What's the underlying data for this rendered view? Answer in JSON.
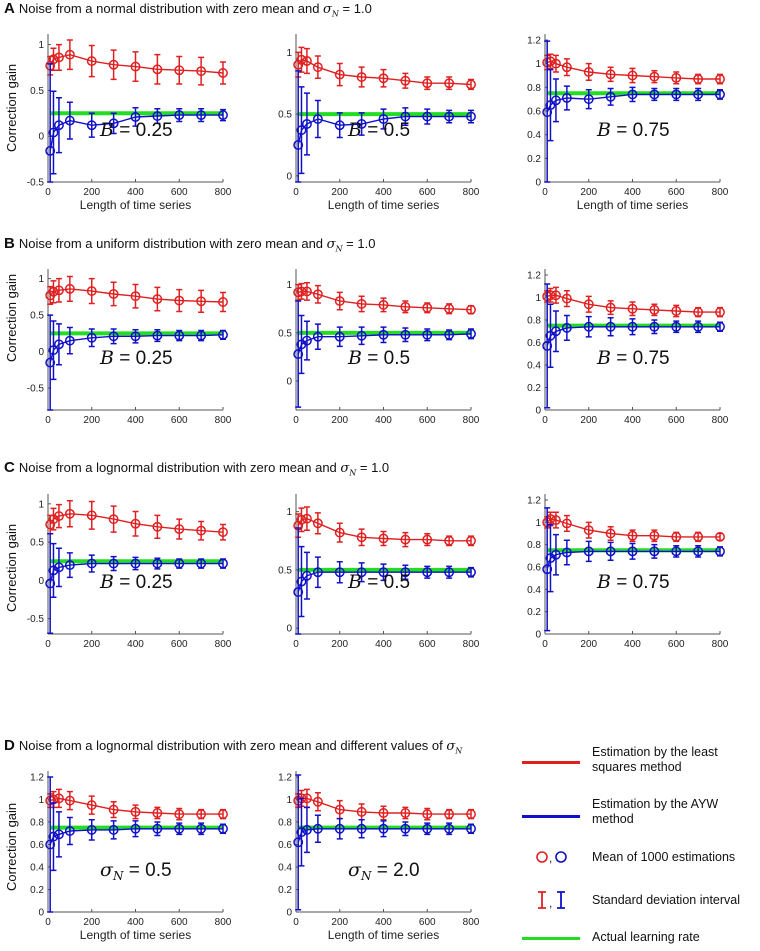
{
  "panel_titles": {
    "A": {
      "letter": "A",
      "text": "Noise from a normal distribution with zero mean and ",
      "sigma": "σ",
      "sub": "N",
      "suffix": " = 1.0"
    },
    "B": {
      "letter": "B",
      "text": "Noise from a uniform distribution with zero mean and ",
      "sigma": "σ",
      "sub": "N",
      "suffix": " = 1.0"
    },
    "C": {
      "letter": "C",
      "text": "Noise from a lognormal distribution with zero mean and ",
      "sigma": "σ",
      "sub": "N",
      "suffix": " = 1.0"
    },
    "D": {
      "letter": "D",
      "text": "Noise from a lognormal distribution with zero mean and different values of ",
      "sigma": "σ",
      "sub": "N",
      "suffix": ""
    }
  },
  "ylabel": "Correction gain",
  "xlabel": "Length of time series",
  "colors": {
    "ls": "#e02020",
    "ayw": "#1010c8",
    "actual": "#22dd22"
  },
  "legend": {
    "ls": "Estimation by the least squares method",
    "ayw": "Estimation by the AYW method",
    "mean": "Mean of 1000 estimations",
    "std": "Standard deviation interval",
    "actual": "Actual learning rate",
    "mean_symbol": ",",
    "std_symbol": ","
  },
  "chart_data": [
    {
      "id": "A1",
      "type": "line",
      "row": "A",
      "col": 0,
      "annotation": "B = 0.25",
      "annotation_var": "B",
      "annotation_val": "= 0.25",
      "ylim": [
        -0.5,
        1.05
      ],
      "yticks": [
        -0.5,
        0,
        0.5,
        1
      ],
      "ytick_labels": [
        "-0.5",
        "0",
        "0.5",
        "1"
      ],
      "xlim": [
        0,
        800
      ],
      "xticks": [
        0,
        200,
        400,
        600,
        800
      ],
      "show_xlabel": true,
      "show_ylabel": true,
      "actual": 0.25,
      "x": [
        10,
        25,
        50,
        100,
        200,
        300,
        400,
        500,
        600,
        700,
        800
      ],
      "ls_mean": [
        0.77,
        0.84,
        0.86,
        0.89,
        0.82,
        0.78,
        0.76,
        0.73,
        0.72,
        0.71,
        0.69
      ],
      "ls_sd": [
        0.1,
        0.12,
        0.14,
        0.16,
        0.17,
        0.16,
        0.16,
        0.16,
        0.15,
        0.15,
        0.12
      ],
      "ayw_mean": [
        -0.16,
        0.04,
        0.12,
        0.17,
        0.12,
        0.14,
        0.21,
        0.22,
        0.23,
        0.23,
        0.23
      ],
      "ayw_sd": [
        0.95,
        0.45,
        0.3,
        0.2,
        0.13,
        0.11,
        0.1,
        0.08,
        0.07,
        0.07,
        0.06
      ]
    },
    {
      "id": "A2",
      "type": "line",
      "row": "A",
      "col": 1,
      "annotation": "B = 0.5",
      "annotation_var": "B",
      "annotation_val": "= 0.5",
      "ylim": [
        -0.05,
        1.1
      ],
      "yticks": [
        0,
        0.5,
        1
      ],
      "ytick_labels": [
        "0",
        "0.5",
        "1"
      ],
      "xlim": [
        0,
        800
      ],
      "xticks": [
        0,
        200,
        400,
        600,
        800
      ],
      "show_xlabel": true,
      "show_ylabel": false,
      "actual": 0.5,
      "x": [
        10,
        25,
        50,
        100,
        200,
        300,
        400,
        500,
        600,
        700,
        800
      ],
      "ls_mean": [
        0.9,
        0.94,
        0.93,
        0.88,
        0.82,
        0.8,
        0.79,
        0.77,
        0.75,
        0.75,
        0.74
      ],
      "ls_sd": [
        0.1,
        0.1,
        0.1,
        0.09,
        0.09,
        0.08,
        0.07,
        0.06,
        0.05,
        0.05,
        0.04
      ],
      "ayw_mean": [
        0.25,
        0.37,
        0.42,
        0.46,
        0.41,
        0.42,
        0.46,
        0.48,
        0.48,
        0.48,
        0.48
      ],
      "ayw_sd": [
        0.6,
        0.35,
        0.25,
        0.15,
        0.1,
        0.09,
        0.08,
        0.07,
        0.06,
        0.05,
        0.05
      ]
    },
    {
      "id": "A3",
      "type": "line",
      "row": "A",
      "col": 2,
      "annotation": "B = 0.75",
      "annotation_var": "B",
      "annotation_val": "= 0.75",
      "ylim": [
        0,
        1.2
      ],
      "yticks": [
        0,
        0.2,
        0.4,
        0.6,
        0.8,
        1,
        1.2
      ],
      "ytick_labels": [
        "0",
        "0.2",
        "0.4",
        "0.6",
        "0.8",
        "1",
        "1.2"
      ],
      "xlim": [
        0,
        800
      ],
      "xticks": [
        0,
        200,
        400,
        600,
        800
      ],
      "show_xlabel": true,
      "show_ylabel": false,
      "actual": 0.75,
      "x": [
        10,
        25,
        50,
        100,
        200,
        300,
        400,
        500,
        600,
        700,
        800
      ],
      "ls_mean": [
        1.01,
        1.02,
        1.0,
        0.97,
        0.93,
        0.91,
        0.9,
        0.89,
        0.88,
        0.87,
        0.87
      ],
      "ls_sd": [
        0.06,
        0.06,
        0.07,
        0.07,
        0.07,
        0.06,
        0.06,
        0.05,
        0.05,
        0.04,
        0.04
      ],
      "ayw_mean": [
        0.59,
        0.65,
        0.69,
        0.71,
        0.7,
        0.72,
        0.74,
        0.74,
        0.74,
        0.74,
        0.74
      ],
      "ayw_sd": [
        0.6,
        0.3,
        0.18,
        0.1,
        0.08,
        0.07,
        0.06,
        0.05,
        0.05,
        0.05,
        0.04
      ]
    },
    {
      "id": "B1",
      "type": "line",
      "row": "B",
      "col": 0,
      "annotation": "B = 0.25",
      "annotation_var": "B",
      "annotation_val": "= 0.25",
      "ylim": [
        -0.8,
        1.05
      ],
      "yticks": [
        -0.5,
        0,
        0.5,
        1
      ],
      "ytick_labels": [
        "-0.5",
        "0",
        "0.5",
        "1"
      ],
      "xlim": [
        0,
        800
      ],
      "xticks": [
        0,
        200,
        400,
        600,
        800
      ],
      "show_xlabel": false,
      "show_ylabel": true,
      "actual": 0.25,
      "x": [
        10,
        25,
        50,
        100,
        200,
        300,
        400,
        500,
        600,
        700,
        800
      ],
      "ls_mean": [
        0.77,
        0.82,
        0.84,
        0.86,
        0.83,
        0.79,
        0.76,
        0.72,
        0.7,
        0.69,
        0.68
      ],
      "ls_sd": [
        0.12,
        0.15,
        0.16,
        0.17,
        0.17,
        0.16,
        0.16,
        0.16,
        0.15,
        0.15,
        0.13
      ],
      "ayw_mean": [
        -0.15,
        0.02,
        0.1,
        0.15,
        0.19,
        0.21,
        0.21,
        0.22,
        0.22,
        0.22,
        0.23
      ],
      "ayw_sd": [
        0.65,
        0.4,
        0.28,
        0.18,
        0.12,
        0.1,
        0.09,
        0.08,
        0.07,
        0.07,
        0.06
      ]
    },
    {
      "id": "B2",
      "type": "line",
      "row": "B",
      "col": 1,
      "annotation": "B = 0.5",
      "annotation_var": "B",
      "annotation_val": "= 0.5",
      "ylim": [
        -0.3,
        1.1
      ],
      "yticks": [
        0,
        0.5,
        1
      ],
      "ytick_labels": [
        "0",
        "0.5",
        "1"
      ],
      "xlim": [
        0,
        800
      ],
      "xticks": [
        0,
        200,
        400,
        600,
        800
      ],
      "show_xlabel": false,
      "show_ylabel": false,
      "actual": 0.5,
      "x": [
        10,
        25,
        50,
        100,
        200,
        300,
        400,
        500,
        600,
        700,
        800
      ],
      "ls_mean": [
        0.92,
        0.93,
        0.93,
        0.9,
        0.83,
        0.8,
        0.79,
        0.77,
        0.76,
        0.75,
        0.74
      ],
      "ls_sd": [
        0.08,
        0.08,
        0.09,
        0.09,
        0.09,
        0.08,
        0.07,
        0.06,
        0.05,
        0.05,
        0.04
      ],
      "ayw_mean": [
        0.28,
        0.38,
        0.42,
        0.46,
        0.46,
        0.47,
        0.48,
        0.48,
        0.48,
        0.48,
        0.49
      ],
      "ayw_sd": [
        0.55,
        0.3,
        0.2,
        0.13,
        0.1,
        0.09,
        0.08,
        0.07,
        0.06,
        0.05,
        0.05
      ]
    },
    {
      "id": "B3",
      "type": "line",
      "row": "B",
      "col": 2,
      "annotation": "B = 0.75",
      "annotation_var": "B",
      "annotation_val": "= 0.75",
      "ylim": [
        0,
        1.2
      ],
      "yticks": [
        0,
        0.2,
        0.4,
        0.6,
        0.8,
        1,
        1.2
      ],
      "ytick_labels": [
        "0",
        "0.2",
        "0.4",
        "0.6",
        "0.8",
        "1",
        "1.2"
      ],
      "xlim": [
        0,
        800
      ],
      "xticks": [
        0,
        200,
        400,
        600,
        800
      ],
      "show_xlabel": false,
      "show_ylabel": false,
      "actual": 0.75,
      "x": [
        10,
        25,
        50,
        100,
        200,
        300,
        400,
        500,
        600,
        700,
        800
      ],
      "ls_mean": [
        1.01,
        1.02,
        1.02,
        0.99,
        0.94,
        0.91,
        0.9,
        0.89,
        0.88,
        0.87,
        0.87
      ],
      "ls_sd": [
        0.05,
        0.06,
        0.07,
        0.07,
        0.07,
        0.06,
        0.06,
        0.05,
        0.05,
        0.04,
        0.04
      ],
      "ayw_mean": [
        0.57,
        0.66,
        0.7,
        0.73,
        0.74,
        0.74,
        0.74,
        0.74,
        0.74,
        0.74,
        0.74
      ],
      "ayw_sd": [
        0.55,
        0.28,
        0.18,
        0.11,
        0.09,
        0.08,
        0.07,
        0.06,
        0.05,
        0.05,
        0.04
      ]
    },
    {
      "id": "C1",
      "type": "line",
      "row": "C",
      "col": 0,
      "annotation": "B = 0.25",
      "annotation_var": "B",
      "annotation_val": "= 0.25",
      "ylim": [
        -0.7,
        1.05
      ],
      "yticks": [
        -0.5,
        0,
        0.5,
        1
      ],
      "ytick_labels": [
        "-0.5",
        "0",
        "0.5",
        "1"
      ],
      "xlim": [
        0,
        800
      ],
      "xticks": [
        0,
        200,
        400,
        600,
        800
      ],
      "show_xlabel": false,
      "show_ylabel": true,
      "actual": 0.25,
      "x": [
        10,
        25,
        50,
        100,
        200,
        300,
        400,
        500,
        600,
        700,
        800
      ],
      "ls_mean": [
        0.73,
        0.8,
        0.84,
        0.87,
        0.85,
        0.8,
        0.74,
        0.7,
        0.67,
        0.65,
        0.63
      ],
      "ls_sd": [
        0.12,
        0.14,
        0.15,
        0.17,
        0.18,
        0.17,
        0.16,
        0.15,
        0.13,
        0.12,
        0.1
      ],
      "ayw_mean": [
        -0.04,
        0.13,
        0.17,
        0.2,
        0.22,
        0.22,
        0.22,
        0.22,
        0.22,
        0.22,
        0.22
      ],
      "ayw_sd": [
        0.65,
        0.35,
        0.25,
        0.16,
        0.11,
        0.09,
        0.08,
        0.07,
        0.06,
        0.06,
        0.06
      ]
    },
    {
      "id": "C2",
      "type": "line",
      "row": "C",
      "col": 1,
      "annotation": "B = 0.5",
      "annotation_var": "B",
      "annotation_val": "= 0.5",
      "ylim": [
        -0.05,
        1.1
      ],
      "yticks": [
        0,
        0.5,
        1
      ],
      "ytick_labels": [
        "0",
        "0.5",
        "1"
      ],
      "xlim": [
        0,
        800
      ],
      "xticks": [
        0,
        200,
        400,
        600,
        800
      ],
      "show_xlabel": false,
      "show_ylabel": false,
      "actual": 0.5,
      "x": [
        10,
        25,
        50,
        100,
        200,
        300,
        400,
        500,
        600,
        700,
        800
      ],
      "ls_mean": [
        0.88,
        0.93,
        0.94,
        0.9,
        0.82,
        0.78,
        0.77,
        0.76,
        0.76,
        0.75,
        0.75
      ],
      "ls_sd": [
        0.1,
        0.1,
        0.1,
        0.09,
        0.08,
        0.07,
        0.06,
        0.06,
        0.05,
        0.04,
        0.04
      ],
      "ayw_mean": [
        0.31,
        0.4,
        0.45,
        0.48,
        0.48,
        0.48,
        0.48,
        0.48,
        0.48,
        0.48,
        0.48
      ],
      "ayw_sd": [
        0.55,
        0.3,
        0.2,
        0.13,
        0.09,
        0.08,
        0.07,
        0.06,
        0.05,
        0.05,
        0.04
      ]
    },
    {
      "id": "C3",
      "type": "line",
      "row": "C",
      "col": 2,
      "annotation": "B = 0.75",
      "annotation_var": "B",
      "annotation_val": "= 0.75",
      "ylim": [
        0,
        1.2
      ],
      "yticks": [
        0,
        0.2,
        0.4,
        0.6,
        0.8,
        1,
        1.2
      ],
      "ytick_labels": [
        "0",
        "0.2",
        "0.4",
        "0.6",
        "0.8",
        "1",
        "1.2"
      ],
      "xlim": [
        0,
        800
      ],
      "xticks": [
        0,
        200,
        400,
        600,
        800
      ],
      "show_xlabel": false,
      "show_ylabel": false,
      "actual": 0.75,
      "x": [
        10,
        25,
        50,
        100,
        200,
        300,
        400,
        500,
        600,
        700,
        800
      ],
      "ls_mean": [
        1.0,
        1.03,
        1.02,
        0.99,
        0.93,
        0.9,
        0.88,
        0.88,
        0.87,
        0.87,
        0.87
      ],
      "ls_sd": [
        0.05,
        0.06,
        0.07,
        0.07,
        0.07,
        0.06,
        0.05,
        0.05,
        0.04,
        0.04,
        0.03
      ],
      "ayw_mean": [
        0.58,
        0.68,
        0.71,
        0.73,
        0.74,
        0.74,
        0.74,
        0.74,
        0.74,
        0.74,
        0.74
      ],
      "ayw_sd": [
        0.55,
        0.3,
        0.18,
        0.11,
        0.09,
        0.08,
        0.07,
        0.06,
        0.05,
        0.05,
        0.04
      ]
    },
    {
      "id": "D1",
      "type": "line",
      "row": "D",
      "col": 0,
      "annotation": "σN = 0.5",
      "annotation_var": "σ",
      "annotation_sub": "N",
      "annotation_val": "= 0.5",
      "ylim": [
        0,
        1.2
      ],
      "yticks": [
        0,
        0.2,
        0.4,
        0.6,
        0.8,
        1,
        1.2
      ],
      "ytick_labels": [
        "0",
        "0.2",
        "0.4",
        "0.6",
        "0.8",
        "1",
        "1.2"
      ],
      "xlim": [
        0,
        800
      ],
      "xticks": [
        0,
        200,
        400,
        600,
        800
      ],
      "show_xlabel": true,
      "show_ylabel": true,
      "actual": 0.75,
      "x": [
        10,
        25,
        50,
        100,
        200,
        300,
        400,
        500,
        600,
        700,
        800
      ],
      "ls_mean": [
        0.99,
        1.0,
        1.01,
        0.99,
        0.95,
        0.91,
        0.89,
        0.88,
        0.87,
        0.87,
        0.87
      ],
      "ls_sd": [
        0.06,
        0.07,
        0.08,
        0.08,
        0.08,
        0.07,
        0.06,
        0.05,
        0.05,
        0.04,
        0.04
      ],
      "ayw_mean": [
        0.6,
        0.67,
        0.69,
        0.72,
        0.73,
        0.73,
        0.74,
        0.74,
        0.74,
        0.74,
        0.74
      ],
      "ayw_sd": [
        0.6,
        0.3,
        0.2,
        0.12,
        0.09,
        0.08,
        0.07,
        0.06,
        0.05,
        0.05,
        0.04
      ]
    },
    {
      "id": "D2",
      "type": "line",
      "row": "D",
      "col": 1,
      "annotation": "σN = 2.0",
      "annotation_var": "σ",
      "annotation_sub": "N",
      "annotation_val": "= 2.0",
      "ylim": [
        0,
        1.2
      ],
      "yticks": [
        0,
        0.2,
        0.4,
        0.6,
        0.8,
        1,
        1.2
      ],
      "ytick_labels": [
        "0",
        "0.2",
        "0.4",
        "0.6",
        "0.8",
        "1",
        "1.2"
      ],
      "xlim": [
        0,
        800
      ],
      "xticks": [
        0,
        200,
        400,
        600,
        800
      ],
      "show_xlabel": true,
      "show_ylabel": false,
      "actual": 0.75,
      "x": [
        10,
        25,
        50,
        100,
        200,
        300,
        400,
        500,
        600,
        700,
        800
      ],
      "ls_mean": [
        0.99,
        1.01,
        1.01,
        0.98,
        0.91,
        0.89,
        0.88,
        0.88,
        0.87,
        0.87,
        0.87
      ],
      "ls_sd": [
        0.06,
        0.07,
        0.08,
        0.08,
        0.08,
        0.07,
        0.06,
        0.05,
        0.05,
        0.04,
        0.04
      ],
      "ayw_mean": [
        0.62,
        0.71,
        0.73,
        0.74,
        0.74,
        0.74,
        0.74,
        0.74,
        0.74,
        0.74,
        0.74
      ],
      "ayw_sd": [
        0.6,
        0.3,
        0.2,
        0.12,
        0.09,
        0.08,
        0.07,
        0.06,
        0.05,
        0.05,
        0.04
      ]
    }
  ]
}
